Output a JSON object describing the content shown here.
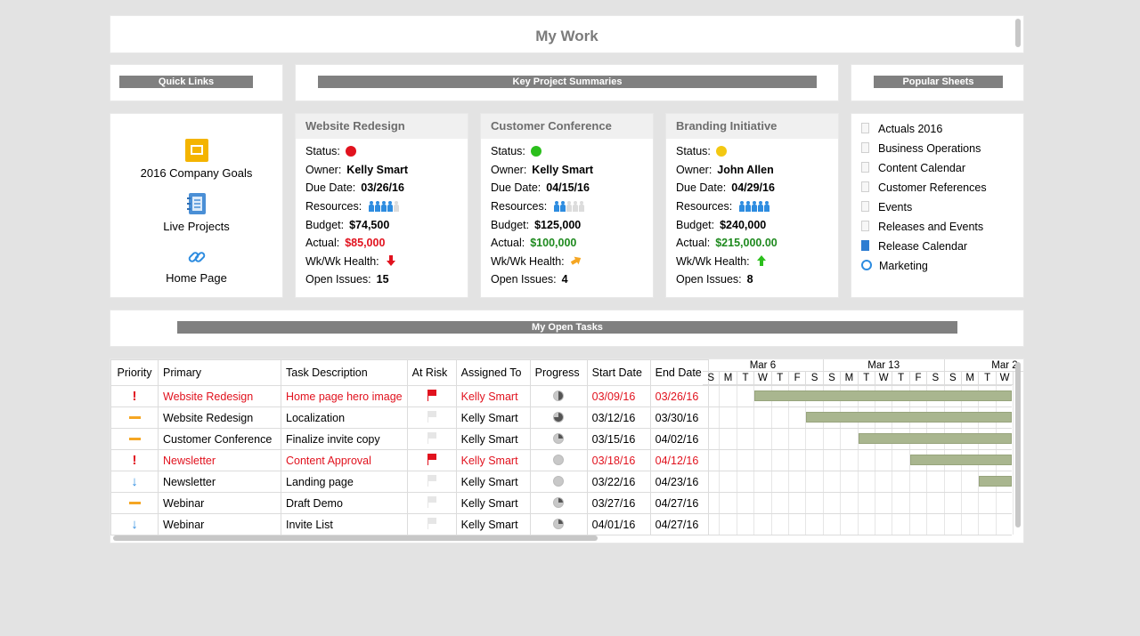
{
  "page": {
    "title": "My Work"
  },
  "quick_links": {
    "header": "Quick Links",
    "items": [
      {
        "label": "2016 Company Goals",
        "icon": "slides-icon"
      },
      {
        "label": "Live Projects",
        "icon": "notebook-icon"
      },
      {
        "label": "Home Page",
        "icon": "link-icon"
      }
    ]
  },
  "summaries": {
    "header": "Key Project  Summaries",
    "field_labels": {
      "status": "Status:",
      "owner": "Owner:",
      "due": "Due Date:",
      "resources": "Resources:",
      "budget": "Budget:",
      "actual": "Actual:",
      "health": "Wk/Wk Health:",
      "issues": "Open Issues:"
    },
    "projects": [
      {
        "name": "Website Redesign",
        "status_color": "#e1121e",
        "owner": "Kelly Smart",
        "due": "03/26/16",
        "resources_filled": 4,
        "resources_total": 5,
        "budget": "$74,500",
        "actual": "$85,000",
        "actual_color": "#e1121e",
        "health": "down",
        "health_icon": "arrow-down-icon",
        "health_color": "#e1121e",
        "issues": "15"
      },
      {
        "name": "Customer Conference",
        "status_color": "#2bbf1c",
        "owner": "Kelly Smart",
        "due": "04/15/16",
        "resources_filled": 2,
        "resources_total": 5,
        "budget": "$125,000",
        "actual": "$100,000",
        "actual_color": "#1f8a1f",
        "health": "sideways",
        "health_icon": "arrow-sideways-icon",
        "health_color": "#f5a623",
        "issues": "4"
      },
      {
        "name": "Branding Initiative",
        "status_color": "#f3c812",
        "owner": "John Allen",
        "due": "04/29/16",
        "resources_filled": 5,
        "resources_total": 5,
        "budget": "$240,000",
        "actual": "$215,000.00",
        "actual_color": "#1f8a1f",
        "health": "up",
        "health_icon": "arrow-up-icon",
        "health_color": "#2bbf1c",
        "issues": "8"
      }
    ]
  },
  "popular_sheets": {
    "header": "Popular Sheets",
    "items": [
      {
        "label": "Actuals 2016",
        "icon": "sheet-icon"
      },
      {
        "label": "Business Operations",
        "icon": "sheet-icon"
      },
      {
        "label": "Content Calendar",
        "icon": "sheet-icon"
      },
      {
        "label": "Customer References",
        "icon": "sheet-icon"
      },
      {
        "label": "Events",
        "icon": "sheet-icon"
      },
      {
        "label": "Releases and Events",
        "icon": "sheet-icon"
      },
      {
        "label": "Release Calendar",
        "icon": "calendar-icon"
      },
      {
        "label": "Marketing",
        "icon": "globe-icon"
      }
    ]
  },
  "open_tasks": {
    "header": "My Open Tasks",
    "columns": [
      "Priority",
      "Primary",
      "Task Description",
      "At Risk",
      "Assigned To",
      "Progress",
      "Start Date",
      "End Date"
    ],
    "rows": [
      {
        "priority": "high",
        "primary": "Website Redesign",
        "task": "Home page hero image",
        "at_risk": true,
        "assigned": "Kelly Smart",
        "progress": 0.5,
        "start": "03/09/16",
        "end": "03/26/16",
        "red": true
      },
      {
        "priority": "medium",
        "primary": "Website Redesign",
        "task": "Localization",
        "at_risk": false,
        "assigned": "Kelly Smart",
        "progress": 0.75,
        "start": "03/12/16",
        "end": "03/30/16",
        "red": false
      },
      {
        "priority": "medium",
        "primary": "Customer Conference",
        "task": "Finalize invite copy",
        "at_risk": false,
        "assigned": "Kelly Smart",
        "progress": 0.25,
        "start": "03/15/16",
        "end": "04/02/16",
        "red": false
      },
      {
        "priority": "high",
        "primary": "Newsletter",
        "task": "Content Approval",
        "at_risk": true,
        "assigned": "Kelly Smart",
        "progress": 0,
        "start": "03/18/16",
        "end": "04/12/16",
        "red": true
      },
      {
        "priority": "low",
        "primary": "Newsletter",
        "task": "Landing page",
        "at_risk": false,
        "assigned": "Kelly Smart",
        "progress": 0,
        "start": "03/22/16",
        "end": "04/23/16",
        "red": false
      },
      {
        "priority": "medium",
        "primary": "Webinar",
        "task": "Draft Demo",
        "at_risk": false,
        "assigned": "Kelly Smart",
        "progress": 0.25,
        "start": "03/27/16",
        "end": "04/27/16",
        "red": false
      },
      {
        "priority": "low",
        "primary": "Webinar",
        "task": "Invite List",
        "at_risk": false,
        "assigned": "Kelly Smart",
        "progress": 0.25,
        "start": "04/01/16",
        "end": "04/27/16",
        "red": false
      }
    ],
    "gantt": {
      "weeks": [
        "Mar 6",
        "Mar 13",
        "Mar 2"
      ],
      "days": [
        "S",
        "M",
        "T",
        "W",
        "T",
        "F",
        "S",
        "S",
        "M",
        "T",
        "W",
        "T",
        "F",
        "S",
        "S",
        "M",
        "T",
        "W"
      ],
      "bar_color": "#a9b68f"
    }
  },
  "colors": {
    "bar_gray": "#808080",
    "red": "#e1121e",
    "green": "#1f8a1f",
    "orange": "#f5a623",
    "blue": "#2d8ce0"
  }
}
